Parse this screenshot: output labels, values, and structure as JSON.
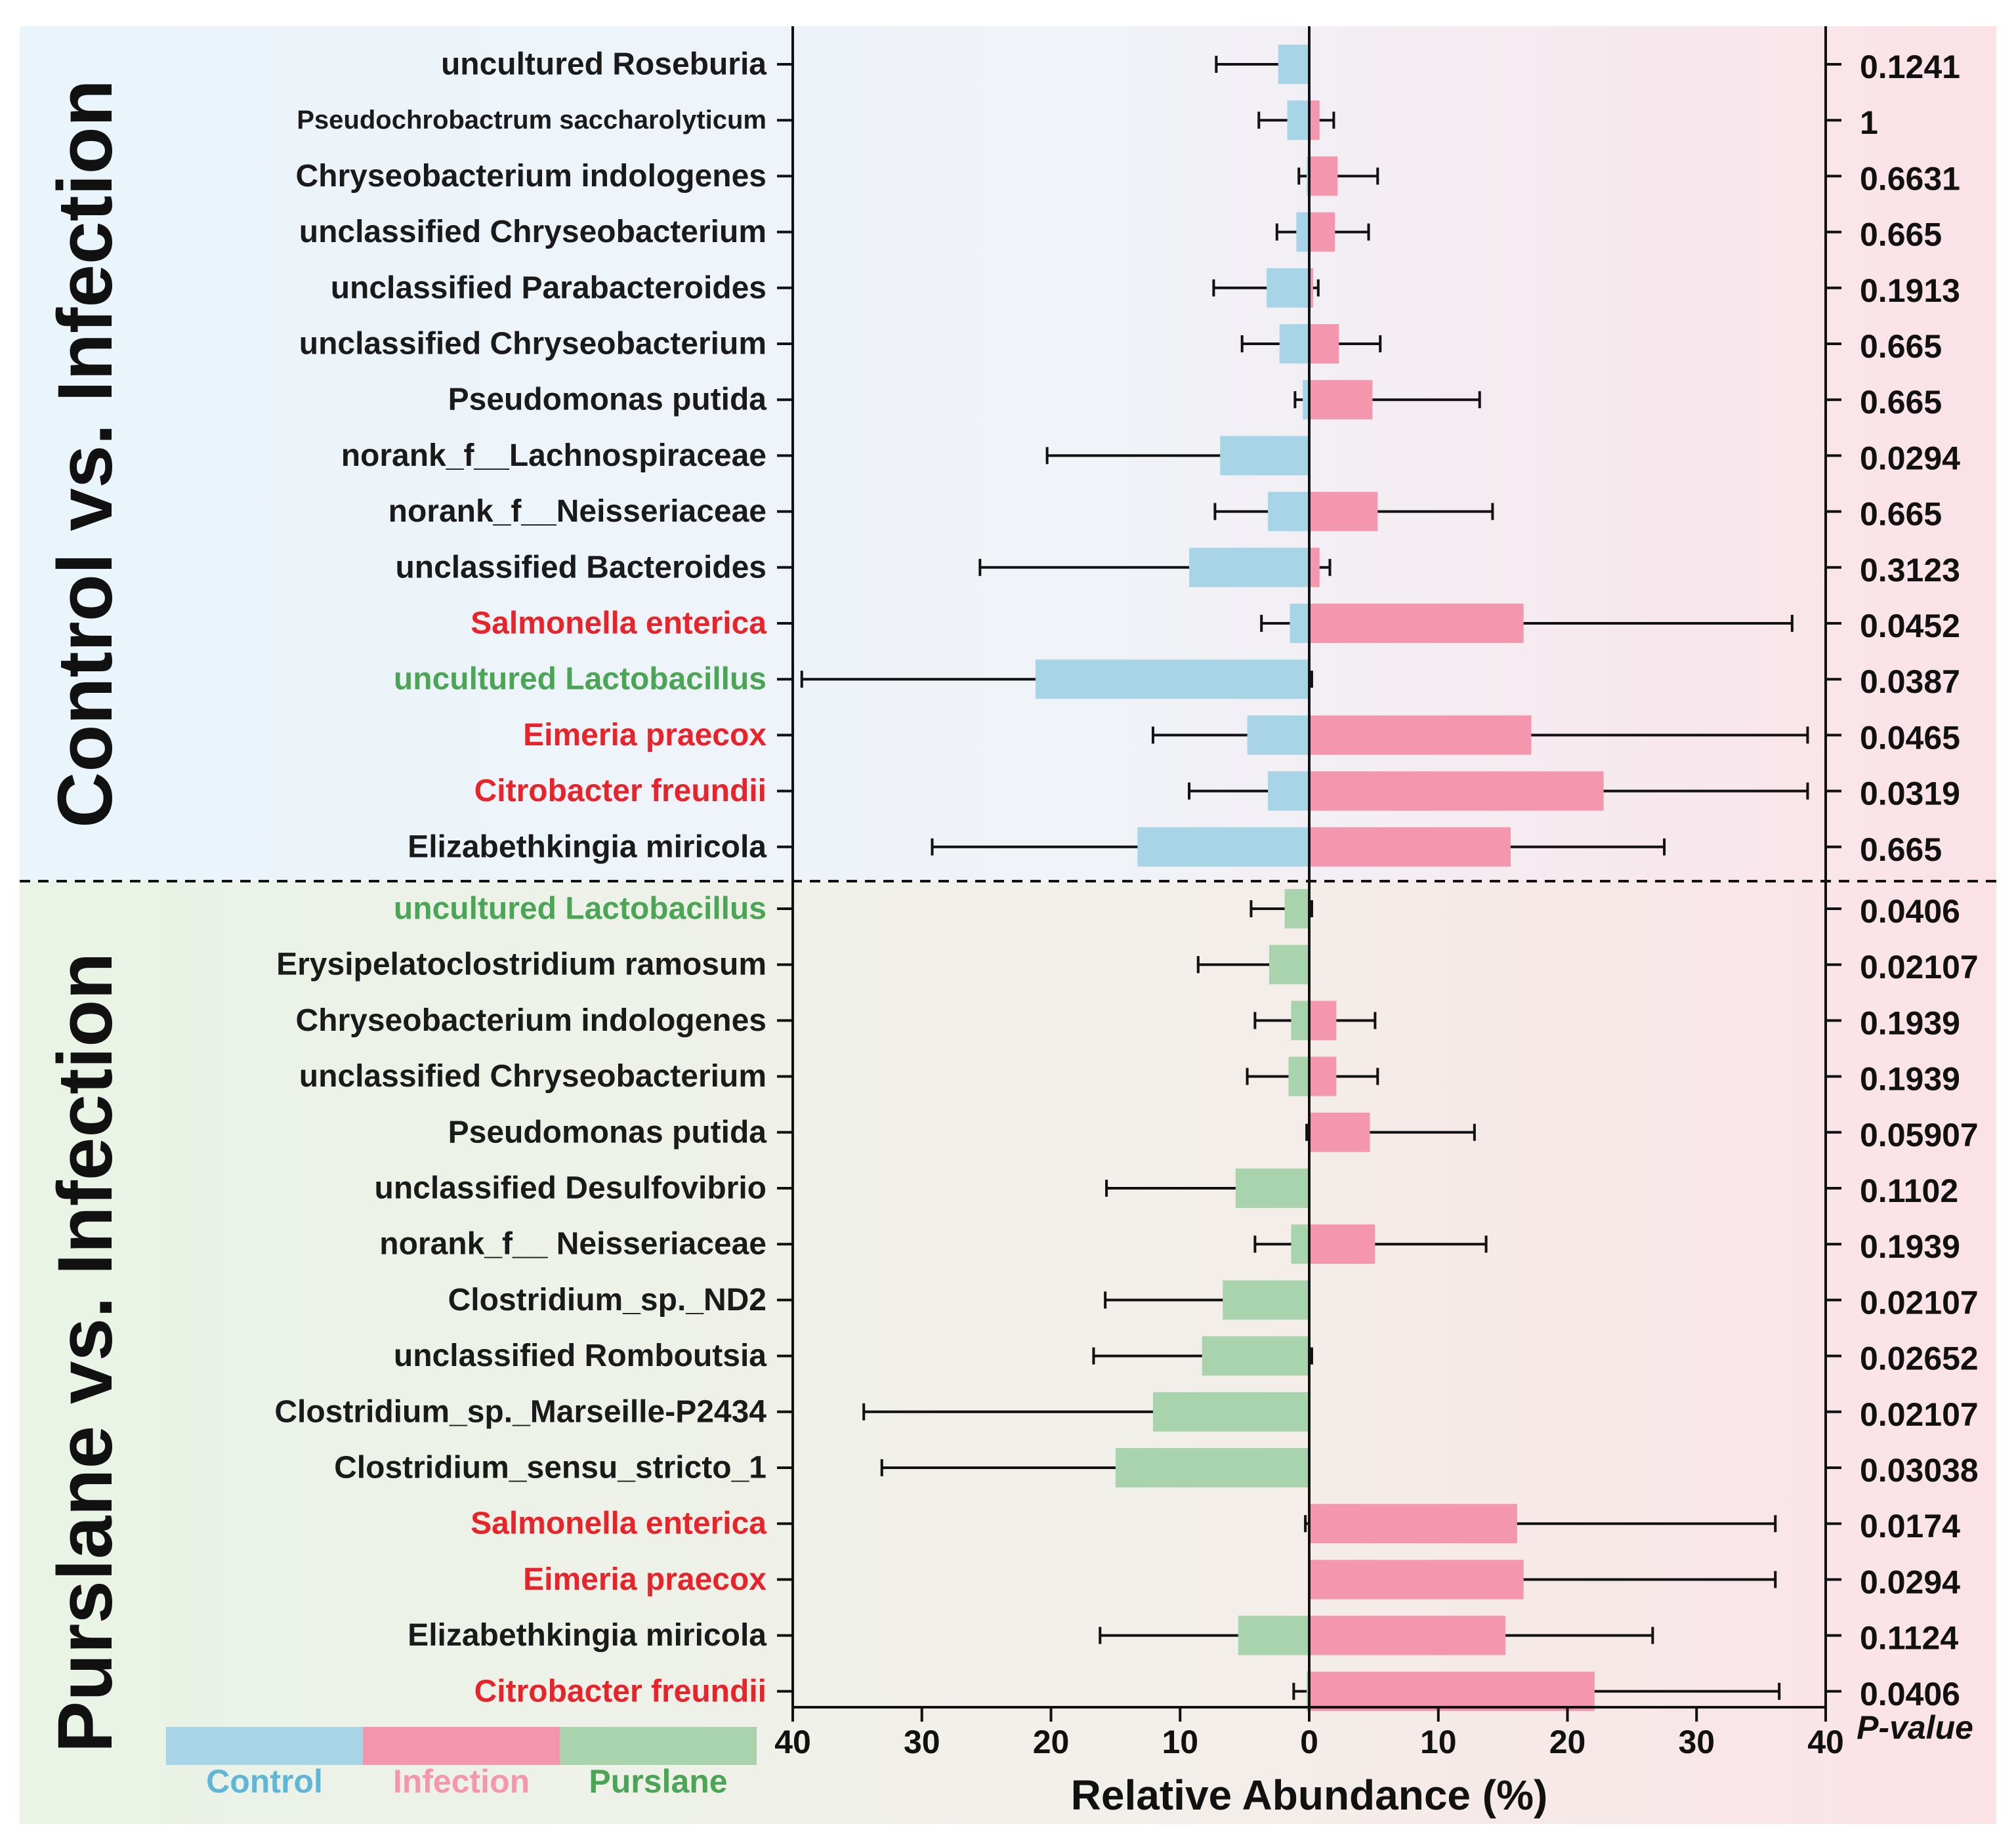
{
  "colors": {
    "control": "#a7d4e6",
    "infection": "#f497ae",
    "purslane": "#a9d3ac",
    "label_default": "#1a1a1a",
    "label_red": "#e8232a",
    "label_green": "#4aa655",
    "legend_text_control": "#5fb6d6",
    "legend_text_infection": "#f497ae",
    "legend_text_purslane": "#4aa655",
    "bg_top_left": "#eaf4fb",
    "bg_bottom_left": "#e9f3e6",
    "bg_right": "#fbe2e7"
  },
  "panel_titles": {
    "top": "Control vs. Infection",
    "bottom": "Purslane vs. Infection"
  },
  "legend": [
    {
      "key": "control",
      "label": "Control"
    },
    {
      "key": "infection",
      "label": "Infection"
    },
    {
      "key": "purslane",
      "label": "Purslane"
    }
  ],
  "pvalue_header": "P-value",
  "chart_data": {
    "type": "bar",
    "orientation": "horizontal-diverging",
    "xlabel": "Relative Abundance (%)",
    "xlim": [
      -40,
      40
    ],
    "xticks": [
      -40,
      -30,
      -20,
      -10,
      0,
      10,
      20,
      30,
      40
    ],
    "xtick_labels": [
      "40",
      "30",
      "20",
      "10",
      "0",
      "10",
      "20",
      "30",
      "40"
    ],
    "panels": [
      {
        "title": "Control vs. Infection",
        "left_group": "Control",
        "right_group": "Infection",
        "rows": [
          {
            "label": "uncultured Roseburia",
            "label_color": "default",
            "small": false,
            "left": 2.4,
            "left_err": 4.8,
            "right": 0,
            "right_err": 0,
            "p": "0.1241"
          },
          {
            "label": "Pseudochrobactrum saccharolyticum",
            "label_color": "default",
            "small": true,
            "left": 1.7,
            "left_err": 2.2,
            "right": 0.8,
            "right_err": 1.1,
            "p": "1"
          },
          {
            "label": "Chryseobacterium indologenes",
            "label_color": "default",
            "small": false,
            "left": 0.2,
            "left_err": 0.6,
            "right": 2.2,
            "right_err": 3.1,
            "p": "0.6631"
          },
          {
            "label": "unclassified Chryseobacterium",
            "label_color": "default",
            "small": false,
            "left": 1.0,
            "left_err": 1.5,
            "right": 2.0,
            "right_err": 2.6,
            "p": "0.665"
          },
          {
            "label": "unclassified Parabacteroides",
            "label_color": "default",
            "small": false,
            "left": 3.3,
            "left_err": 4.1,
            "right": 0.3,
            "right_err": 0.4,
            "p": "0.1913"
          },
          {
            "label": "unclassified Chryseobacterium",
            "label_color": "default",
            "small": false,
            "left": 2.3,
            "left_err": 2.9,
            "right": 2.3,
            "right_err": 3.2,
            "p": "0.665"
          },
          {
            "label": "Pseudomonas putida",
            "label_color": "default",
            "small": false,
            "left": 0.5,
            "left_err": 0.6,
            "right": 4.9,
            "right_err": 8.3,
            "p": "0.665"
          },
          {
            "label": "norank_f__Lachnospiraceae",
            "label_color": "default",
            "small": false,
            "left": 6.9,
            "left_err": 13.4,
            "right": 0,
            "right_err": 0,
            "p": "0.0294"
          },
          {
            "label": "norank_f__Neisseriaceae",
            "label_color": "default",
            "small": false,
            "left": 3.2,
            "left_err": 4.1,
            "right": 5.3,
            "right_err": 8.9,
            "p": "0.665"
          },
          {
            "label": "unclassified Bacteroides",
            "label_color": "default",
            "small": false,
            "left": 9.3,
            "left_err": 16.2,
            "right": 0.8,
            "right_err": 0.8,
            "p": "0.3123"
          },
          {
            "label": "Salmonella enterica",
            "label_color": "red",
            "small": false,
            "left": 1.5,
            "left_err": 2.2,
            "right": 16.6,
            "right_err": 20.8,
            "p": "0.0452"
          },
          {
            "label": "uncultured Lactobacillus",
            "label_color": "green",
            "small": false,
            "left": 21.2,
            "left_err": 18.1,
            "right": 0.1,
            "right_err": 0.1,
            "p": "0.0387"
          },
          {
            "label": "Eimeria praecox",
            "label_color": "red",
            "small": false,
            "left": 4.8,
            "left_err": 7.3,
            "right": 17.2,
            "right_err": 21.4,
            "p": "0.0465"
          },
          {
            "label": "Citrobacter freundii",
            "label_color": "red",
            "small": false,
            "left": 3.2,
            "left_err": 6.1,
            "right": 22.8,
            "right_err": 15.8,
            "p": "0.0319"
          },
          {
            "label": "Elizabethkingia miricola",
            "label_color": "default",
            "small": false,
            "left": 13.3,
            "left_err": 15.9,
            "right": 15.6,
            "right_err": 11.9,
            "p": "0.665"
          }
        ]
      },
      {
        "title": "Purslane vs. Infection",
        "left_group": "Purslane",
        "right_group": "Infection",
        "rows": [
          {
            "label": "uncultured Lactobacillus",
            "label_color": "green",
            "small": false,
            "left": 1.9,
            "left_err": 2.6,
            "right": 0.1,
            "right_err": 0.1,
            "p": "0.0406"
          },
          {
            "label": "Erysipelatoclostridium ramosum",
            "label_color": "default",
            "small": false,
            "left": 3.1,
            "left_err": 5.5,
            "right": 0,
            "right_err": 0,
            "p": "0.02107"
          },
          {
            "label": "Chryseobacterium indologenes",
            "label_color": "default",
            "small": false,
            "left": 1.4,
            "left_err": 2.8,
            "right": 2.1,
            "right_err": 3.0,
            "p": "0.1939"
          },
          {
            "label": "unclassified Chryseobacterium",
            "label_color": "default",
            "small": false,
            "left": 1.6,
            "left_err": 3.2,
            "right": 2.1,
            "right_err": 3.2,
            "p": "0.1939"
          },
          {
            "label": "Pseudomonas putida",
            "label_color": "default",
            "small": false,
            "left": 0.1,
            "left_err": 0.1,
            "right": 4.7,
            "right_err": 8.1,
            "p": "0.05907"
          },
          {
            "label": "unclassified Desulfovibrio",
            "label_color": "default",
            "small": false,
            "left": 5.7,
            "left_err": 10.0,
            "right": 0,
            "right_err": 0,
            "p": "0.1102"
          },
          {
            "label": "norank_f__ Neisseriaceae",
            "label_color": "default",
            "small": false,
            "left": 1.4,
            "left_err": 2.8,
            "right": 5.1,
            "right_err": 8.6,
            "p": "0.1939"
          },
          {
            "label": "Clostridium_sp._ND2",
            "label_color": "default",
            "small": false,
            "left": 6.7,
            "left_err": 9.1,
            "right": 0,
            "right_err": 0,
            "p": "0.02107"
          },
          {
            "label": "unclassified Romboutsia",
            "label_color": "default",
            "small": false,
            "left": 8.3,
            "left_err": 8.4,
            "right": 0.1,
            "right_err": 0.1,
            "p": "0.02652"
          },
          {
            "label": "Clostridium_sp._Marseille-P2434",
            "label_color": "default",
            "small": false,
            "left": 12.1,
            "left_err": 22.4,
            "right": 0,
            "right_err": 0,
            "p": "0.02107"
          },
          {
            "label": "Clostridium_sensu_stricto_1",
            "label_color": "default",
            "small": false,
            "left": 15.0,
            "left_err": 18.1,
            "right": 0,
            "right_err": 0,
            "p": "0.03038"
          },
          {
            "label": "Salmonella enterica",
            "label_color": "red",
            "small": false,
            "left": 0.1,
            "left_err": 0.2,
            "right": 16.1,
            "right_err": 20.0,
            "p": "0.0174"
          },
          {
            "label": "Eimeria praecox",
            "label_color": "red",
            "small": false,
            "left": 0,
            "left_err": 0,
            "right": 16.6,
            "right_err": 19.5,
            "p": "0.0294"
          },
          {
            "label": "Elizabethkingia miricola",
            "label_color": "default",
            "small": false,
            "left": 5.5,
            "left_err": 10.7,
            "right": 15.2,
            "right_err": 11.4,
            "p": "0.1124"
          },
          {
            "label": "Citrobacter freundii",
            "label_color": "red",
            "small": false,
            "left": 0.2,
            "left_err": 1.0,
            "right": 22.1,
            "right_err": 14.3,
            "p": "0.0406"
          }
        ]
      }
    ]
  }
}
